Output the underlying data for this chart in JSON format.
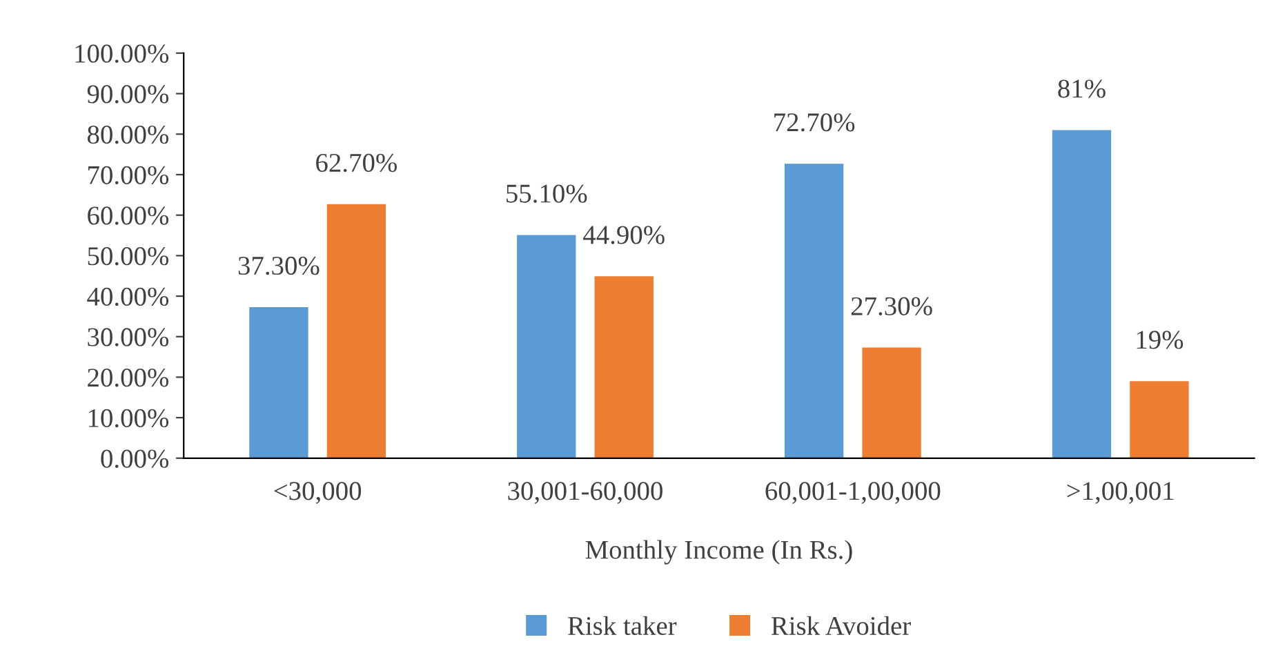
{
  "chart_data": {
    "type": "bar",
    "xlabel": "Monthly Income (In Rs.)",
    "categories": [
      "<30,000",
      "30,001-60,000",
      "60,001-1,00,000",
      ">1,00,001"
    ],
    "series": [
      {
        "name": "Risk taker",
        "color": "#5b9bd5",
        "values": [
          37.3,
          55.1,
          72.7,
          81
        ],
        "value_labels": [
          "37.30%",
          "55.10%",
          "72.70%",
          "81%"
        ]
      },
      {
        "name": "Risk Avoider",
        "color": "#ed7d31",
        "values": [
          62.7,
          44.9,
          27.3,
          19
        ],
        "value_labels": [
          "62.70%",
          "44.90%",
          "27.30%",
          "19%"
        ]
      }
    ],
    "ylim": [
      0,
      100
    ],
    "yticks": [
      {
        "value": 0,
        "label": "0.00%"
      },
      {
        "value": 10,
        "label": "10.00%"
      },
      {
        "value": 20,
        "label": "20.00%"
      },
      {
        "value": 30,
        "label": "30.00%"
      },
      {
        "value": 40,
        "label": "40.00%"
      },
      {
        "value": 50,
        "label": "50.00%"
      },
      {
        "value": 60,
        "label": "60.00%"
      },
      {
        "value": 70,
        "label": "70.00%"
      },
      {
        "value": 80,
        "label": "80.00%"
      },
      {
        "value": 90,
        "label": "90.00%"
      },
      {
        "value": 100,
        "label": "100.00%"
      }
    ],
    "grid": false,
    "legend": "bottom"
  }
}
